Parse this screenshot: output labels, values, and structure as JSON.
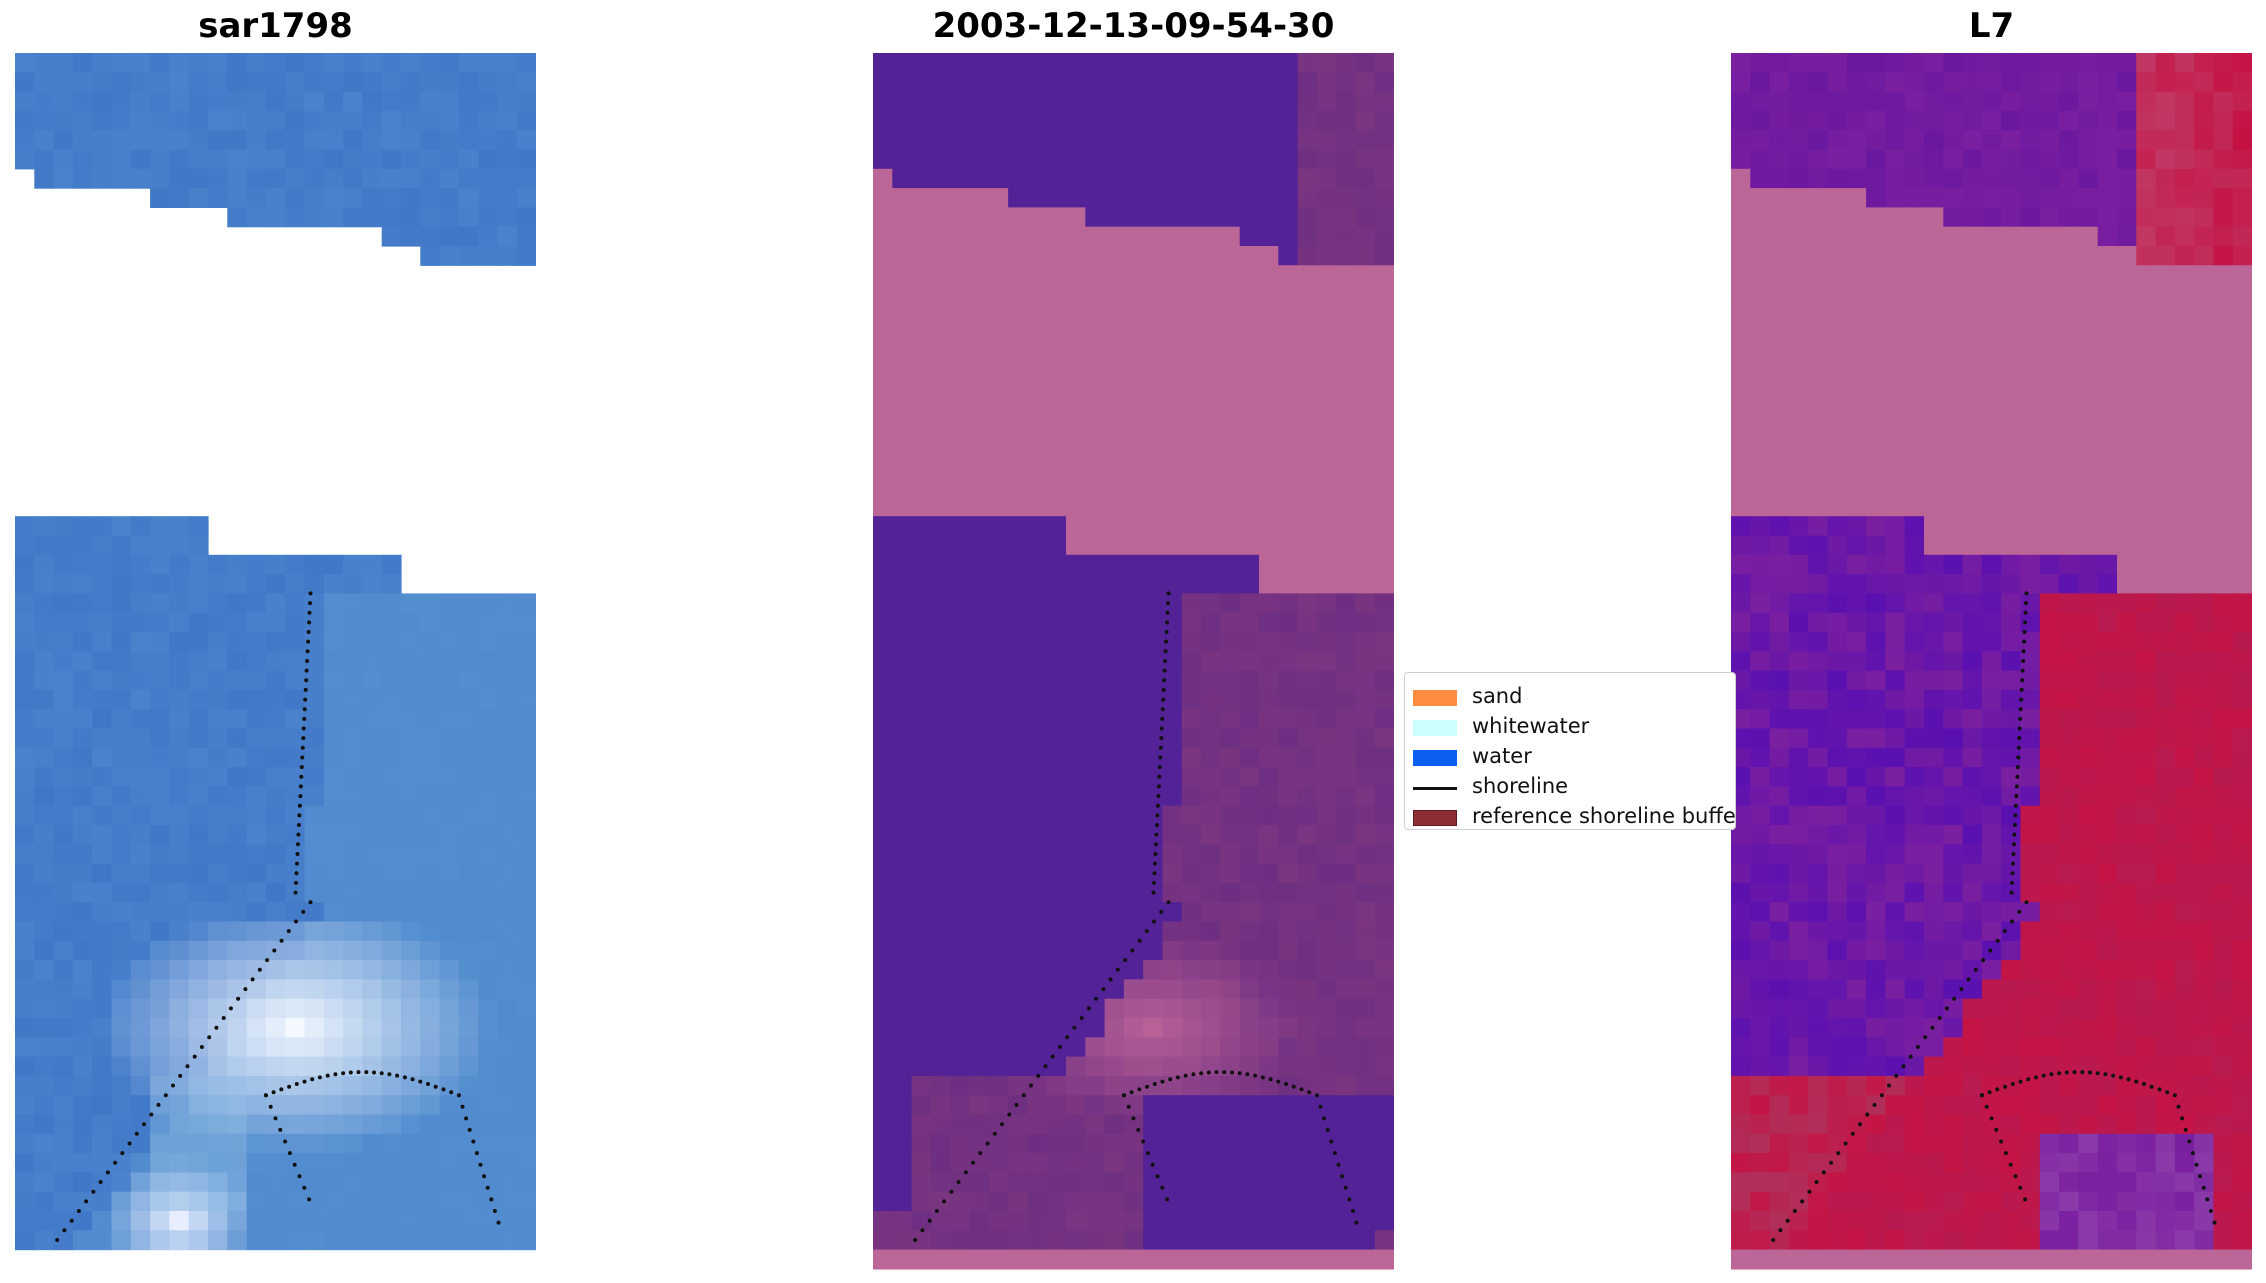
{
  "panels": [
    {
      "title": "sar1798",
      "kind": "rgb"
    },
    {
      "title": "2003-12-13-09-54-30",
      "kind": "classified"
    },
    {
      "title": "L7",
      "kind": "mndwi"
    }
  ],
  "legend": {
    "items": [
      {
        "label": "sand",
        "color": "#ff8c40",
        "type": "patch"
      },
      {
        "label": "whitewater",
        "color": "#ccffff",
        "type": "patch"
      },
      {
        "label": "water",
        "color": "#0a5ef0",
        "type": "patch"
      },
      {
        "label": "shoreline",
        "color": "#111111",
        "type": "line"
      },
      {
        "label": "reference shoreline buffer",
        "color": "#8c2e33",
        "type": "patch"
      }
    ]
  },
  "colors": {
    "rgb_base": "#4a82cc",
    "classified_water": "#542297",
    "classified_land": "#bb6696",
    "classified_mixed": "#7a3580",
    "mndwi_purple": "#7a1fa0",
    "mndwi_red": "#c41445",
    "mndwi_pink": "#bb6696"
  }
}
